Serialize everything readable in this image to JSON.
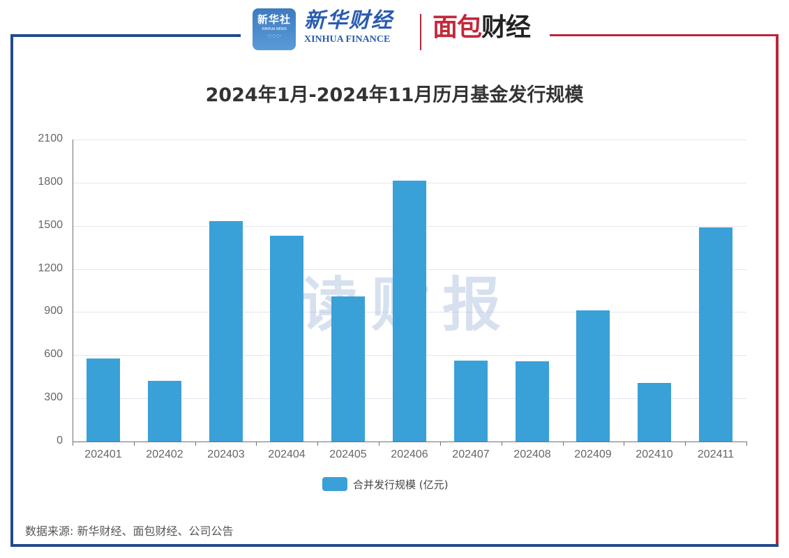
{
  "header": {
    "logo_xinhua_news_cn": "新华社",
    "logo_xinhua_news_en": "XINHUA NEWS",
    "logo_xinhua_finance_cn": "新华财经",
    "logo_xinhua_finance_en": "XINHUA FINANCE",
    "logo_mianbao_red": "面包",
    "logo_mianbao_dark": "财经",
    "registered_mark": "®"
  },
  "watermark": "读财报",
  "legend": {
    "label": "合并发行规模 (亿元)"
  },
  "source": "数据来源: 新华财经、面包财经、公司公告",
  "colors": {
    "bar": "#3aa0d8",
    "frame_blue": "#234a8c",
    "frame_red": "#b8293a"
  },
  "chart_data": {
    "type": "bar",
    "title": "2024年1月-2024年11月历月基金发行规模",
    "xlabel": "",
    "ylabel": "",
    "categories": [
      "202401",
      "202402",
      "202403",
      "202404",
      "202405",
      "202406",
      "202407",
      "202408",
      "202409",
      "202410",
      "202411"
    ],
    "series": [
      {
        "name": "合并发行规模 (亿元)",
        "values": [
          577,
          422,
          1532,
          1431,
          1009,
          1814,
          563,
          558,
          912,
          407,
          1489
        ]
      }
    ],
    "ylim": [
      0,
      2100
    ],
    "yticks": [
      "0",
      "300",
      "600",
      "900",
      "1200",
      "1500",
      "1800",
      "2100"
    ],
    "grid": true,
    "legend_position": "bottom"
  }
}
